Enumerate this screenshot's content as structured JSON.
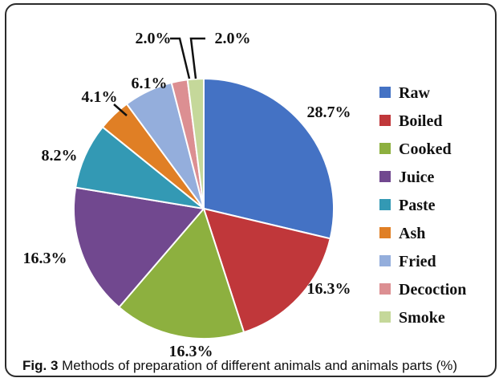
{
  "caption": {
    "label": "Fig. 3",
    "text": "Methods of preparation of different animals and animals parts (%)"
  },
  "chart_data": {
    "type": "pie",
    "title": "",
    "legend_position": "right",
    "slices": [
      {
        "name": "Raw",
        "value": 28.7,
        "label": "28.7%",
        "color": "#4472c4"
      },
      {
        "name": "Boiled",
        "value": 16.3,
        "label": "16.3%",
        "color": "#c0373a"
      },
      {
        "name": "Cooked",
        "value": 16.3,
        "label": "16.3%",
        "color": "#8db03f"
      },
      {
        "name": "Juice",
        "value": 16.3,
        "label": "16.3%",
        "color": "#71488f"
      },
      {
        "name": "Paste",
        "value": 8.2,
        "label": "8.2%",
        "color": "#3399b4"
      },
      {
        "name": "Ash",
        "value": 4.1,
        "label": "4.1%",
        "color": "#e07f25"
      },
      {
        "name": "Fried",
        "value": 6.1,
        "label": "6.1%",
        "color": "#94aedc"
      },
      {
        "name": "Decoction",
        "value": 2.0,
        "label": "2.0%",
        "color": "#dc8f92"
      },
      {
        "name": "Smoke",
        "value": 2.0,
        "label": "2.0%",
        "color": "#c5d89a"
      }
    ]
  }
}
